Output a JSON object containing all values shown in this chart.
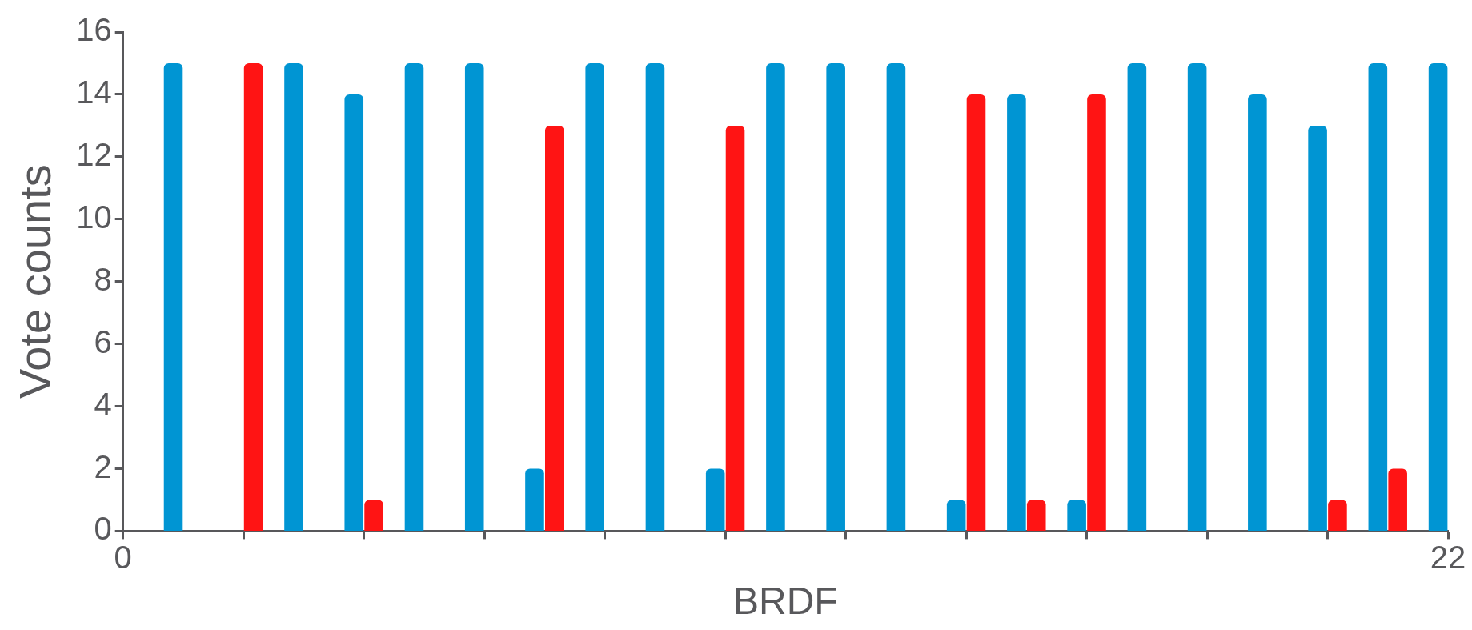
{
  "chart_data": {
    "type": "bar",
    "xlabel": "BRDF",
    "ylabel": "Vote counts",
    "x": [
      1,
      2,
      3,
      4,
      5,
      6,
      7,
      8,
      9,
      10,
      11,
      12,
      13,
      14,
      15,
      16,
      17,
      18,
      19,
      20,
      21,
      22
    ],
    "series": [
      {
        "color": "#0095d3",
        "values": [
          15,
          0,
          15,
          14,
          15,
          15,
          2,
          15,
          15,
          2,
          15,
          15,
          15,
          1,
          14,
          1,
          15,
          15,
          14,
          13,
          15,
          15
        ]
      },
      {
        "color": "#ff1414",
        "values": [
          0,
          15,
          0,
          1,
          0,
          0,
          13,
          0,
          0,
          13,
          0,
          0,
          0,
          14,
          1,
          14,
          0,
          0,
          0,
          1,
          2,
          0
        ]
      }
    ],
    "xlim": [
      0,
      22
    ],
    "xticks": [
      0,
      {
        "value": 2,
        "label": null
      },
      {
        "value": 4,
        "label": null
      },
      {
        "value": 6,
        "label": null
      },
      {
        "value": 8,
        "label": null
      },
      {
        "value": 10,
        "label": null
      },
      {
        "value": 12,
        "label": null
      },
      {
        "value": 14,
        "label": null
      },
      {
        "value": 16,
        "label": null
      },
      {
        "value": 18,
        "label": null
      },
      {
        "value": 20,
        "label": null
      },
      22
    ],
    "ylim": [
      0,
      16
    ],
    "yticks": [
      0,
      2,
      4,
      6,
      8,
      10,
      12,
      14,
      16
    ],
    "grid": false,
    "legend": false
  }
}
